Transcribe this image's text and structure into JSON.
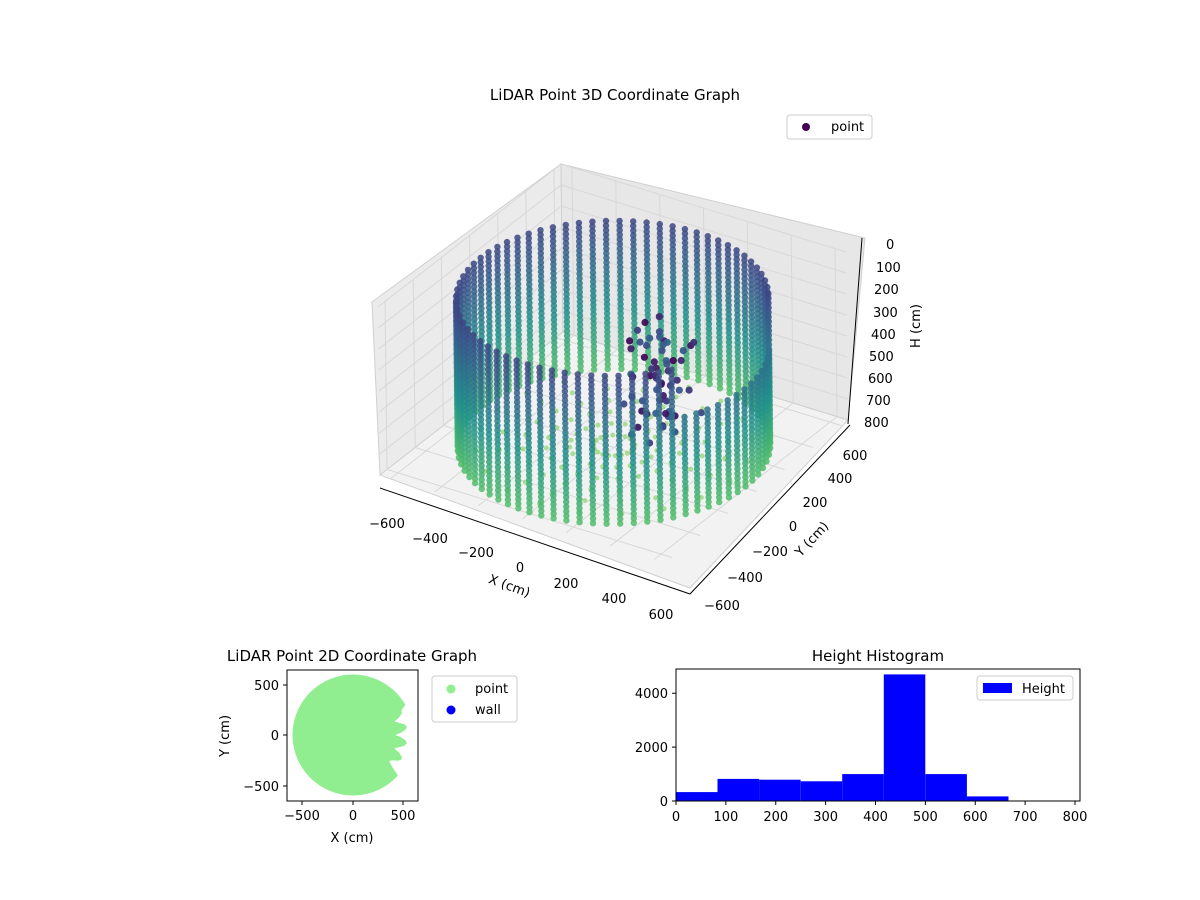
{
  "chart_data": [
    {
      "type": "scatter",
      "projection": "3d",
      "title": "LiDAR Point 3D Coordinate Graph",
      "xlabel": "X (cm)",
      "ylabel": "Y (cm)",
      "zlabel": "H (cm)",
      "xticks": [
        "−600",
        "−400",
        "−200",
        "0",
        "200",
        "400",
        "600"
      ],
      "yticks": [
        "−600",
        "−400",
        "−200",
        "0",
        "200",
        "400",
        "600"
      ],
      "zticks": [
        "0",
        "100",
        "200",
        "300",
        "400",
        "500",
        "600",
        "700",
        "800"
      ],
      "xlim": [
        -650,
        650
      ],
      "ylim": [
        -650,
        650
      ],
      "zlim": [
        800,
        0
      ],
      "zaxis_inverted": true,
      "colormap": "viridis",
      "legend": {
        "labels": [
          "point"
        ],
        "position": "upper right",
        "marker_color": "#440154"
      },
      "grid": true,
      "series": [
        {
          "name": "point",
          "shape": "cylindrical wall of points",
          "wall_radius": 600,
          "height_range": [
            100,
            800
          ],
          "opening_angle_deg": [
            -30,
            40
          ]
        }
      ]
    },
    {
      "type": "scatter",
      "title": "LiDAR Point 2D Coordinate Graph",
      "xlabel": "X (cm)",
      "ylabel": "Y (cm)",
      "xticks": [
        "−500",
        "0",
        "500"
      ],
      "yticks": [
        "500",
        "0",
        "−500"
      ],
      "xlim": [
        -650,
        650
      ],
      "ylim": [
        -650,
        650
      ],
      "legend": {
        "labels": [
          "point",
          "wall"
        ],
        "position": "outside right"
      },
      "series": [
        {
          "name": "point",
          "color": "#90ee90",
          "shape": "filled disc radius ~600 with notch on right side"
        },
        {
          "name": "wall",
          "color": "#0000ff"
        }
      ]
    },
    {
      "type": "bar",
      "histogram": true,
      "title": "Height Histogram",
      "xlabel": "",
      "ylabel": "",
      "xticks": [
        "0",
        "100",
        "200",
        "300",
        "400",
        "500",
        "600",
        "700",
        "800"
      ],
      "yticks": [
        "0",
        "2000",
        "4000"
      ],
      "xlim": [
        0,
        810
      ],
      "ylim": [
        0,
        4900
      ],
      "bin_edges": [
        0,
        83.3,
        166.7,
        250,
        333.3,
        416.7,
        500,
        583.3,
        666.7,
        750,
        833.3
      ],
      "values": [
        330,
        820,
        790,
        730,
        1000,
        4700,
        1000,
        170,
        20,
        20
      ],
      "legend": {
        "labels": [
          "Height"
        ],
        "position": "upper right"
      },
      "series": [
        {
          "name": "Height",
          "color": "#0000ff"
        }
      ]
    }
  ]
}
